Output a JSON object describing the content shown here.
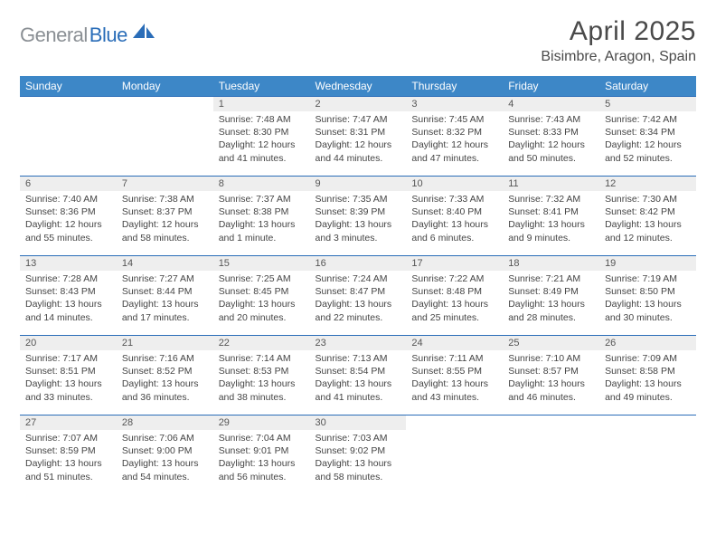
{
  "logo": {
    "gray": "General",
    "blue": "Blue"
  },
  "title": "April 2025",
  "location": "Bisimbre, Aragon, Spain",
  "colors": {
    "header_bg": "#3d87c7",
    "header_text": "#ffffff",
    "daynum_bg": "#eeeeee",
    "rule": "#2a6db8",
    "body_text": "#444444",
    "title_text": "#4a4a4a",
    "logo_gray": "#8a8f94",
    "logo_blue": "#2a6db8"
  },
  "typography": {
    "title_fontsize": 30,
    "location_fontsize": 16,
    "weekday_fontsize": 12,
    "daynum_fontsize": 11,
    "body_fontsize": 10.5
  },
  "weekdays": [
    "Sunday",
    "Monday",
    "Tuesday",
    "Wednesday",
    "Thursday",
    "Friday",
    "Saturday"
  ],
  "weeks": [
    [
      null,
      null,
      {
        "n": "1",
        "sr": "Sunrise: 7:48 AM",
        "ss": "Sunset: 8:30 PM",
        "dl": "Daylight: 12 hours and 41 minutes."
      },
      {
        "n": "2",
        "sr": "Sunrise: 7:47 AM",
        "ss": "Sunset: 8:31 PM",
        "dl": "Daylight: 12 hours and 44 minutes."
      },
      {
        "n": "3",
        "sr": "Sunrise: 7:45 AM",
        "ss": "Sunset: 8:32 PM",
        "dl": "Daylight: 12 hours and 47 minutes."
      },
      {
        "n": "4",
        "sr": "Sunrise: 7:43 AM",
        "ss": "Sunset: 8:33 PM",
        "dl": "Daylight: 12 hours and 50 minutes."
      },
      {
        "n": "5",
        "sr": "Sunrise: 7:42 AM",
        "ss": "Sunset: 8:34 PM",
        "dl": "Daylight: 12 hours and 52 minutes."
      }
    ],
    [
      {
        "n": "6",
        "sr": "Sunrise: 7:40 AM",
        "ss": "Sunset: 8:36 PM",
        "dl": "Daylight: 12 hours and 55 minutes."
      },
      {
        "n": "7",
        "sr": "Sunrise: 7:38 AM",
        "ss": "Sunset: 8:37 PM",
        "dl": "Daylight: 12 hours and 58 minutes."
      },
      {
        "n": "8",
        "sr": "Sunrise: 7:37 AM",
        "ss": "Sunset: 8:38 PM",
        "dl": "Daylight: 13 hours and 1 minute."
      },
      {
        "n": "9",
        "sr": "Sunrise: 7:35 AM",
        "ss": "Sunset: 8:39 PM",
        "dl": "Daylight: 13 hours and 3 minutes."
      },
      {
        "n": "10",
        "sr": "Sunrise: 7:33 AM",
        "ss": "Sunset: 8:40 PM",
        "dl": "Daylight: 13 hours and 6 minutes."
      },
      {
        "n": "11",
        "sr": "Sunrise: 7:32 AM",
        "ss": "Sunset: 8:41 PM",
        "dl": "Daylight: 13 hours and 9 minutes."
      },
      {
        "n": "12",
        "sr": "Sunrise: 7:30 AM",
        "ss": "Sunset: 8:42 PM",
        "dl": "Daylight: 13 hours and 12 minutes."
      }
    ],
    [
      {
        "n": "13",
        "sr": "Sunrise: 7:28 AM",
        "ss": "Sunset: 8:43 PM",
        "dl": "Daylight: 13 hours and 14 minutes."
      },
      {
        "n": "14",
        "sr": "Sunrise: 7:27 AM",
        "ss": "Sunset: 8:44 PM",
        "dl": "Daylight: 13 hours and 17 minutes."
      },
      {
        "n": "15",
        "sr": "Sunrise: 7:25 AM",
        "ss": "Sunset: 8:45 PM",
        "dl": "Daylight: 13 hours and 20 minutes."
      },
      {
        "n": "16",
        "sr": "Sunrise: 7:24 AM",
        "ss": "Sunset: 8:47 PM",
        "dl": "Daylight: 13 hours and 22 minutes."
      },
      {
        "n": "17",
        "sr": "Sunrise: 7:22 AM",
        "ss": "Sunset: 8:48 PM",
        "dl": "Daylight: 13 hours and 25 minutes."
      },
      {
        "n": "18",
        "sr": "Sunrise: 7:21 AM",
        "ss": "Sunset: 8:49 PM",
        "dl": "Daylight: 13 hours and 28 minutes."
      },
      {
        "n": "19",
        "sr": "Sunrise: 7:19 AM",
        "ss": "Sunset: 8:50 PM",
        "dl": "Daylight: 13 hours and 30 minutes."
      }
    ],
    [
      {
        "n": "20",
        "sr": "Sunrise: 7:17 AM",
        "ss": "Sunset: 8:51 PM",
        "dl": "Daylight: 13 hours and 33 minutes."
      },
      {
        "n": "21",
        "sr": "Sunrise: 7:16 AM",
        "ss": "Sunset: 8:52 PM",
        "dl": "Daylight: 13 hours and 36 minutes."
      },
      {
        "n": "22",
        "sr": "Sunrise: 7:14 AM",
        "ss": "Sunset: 8:53 PM",
        "dl": "Daylight: 13 hours and 38 minutes."
      },
      {
        "n": "23",
        "sr": "Sunrise: 7:13 AM",
        "ss": "Sunset: 8:54 PM",
        "dl": "Daylight: 13 hours and 41 minutes."
      },
      {
        "n": "24",
        "sr": "Sunrise: 7:11 AM",
        "ss": "Sunset: 8:55 PM",
        "dl": "Daylight: 13 hours and 43 minutes."
      },
      {
        "n": "25",
        "sr": "Sunrise: 7:10 AM",
        "ss": "Sunset: 8:57 PM",
        "dl": "Daylight: 13 hours and 46 minutes."
      },
      {
        "n": "26",
        "sr": "Sunrise: 7:09 AM",
        "ss": "Sunset: 8:58 PM",
        "dl": "Daylight: 13 hours and 49 minutes."
      }
    ],
    [
      {
        "n": "27",
        "sr": "Sunrise: 7:07 AM",
        "ss": "Sunset: 8:59 PM",
        "dl": "Daylight: 13 hours and 51 minutes."
      },
      {
        "n": "28",
        "sr": "Sunrise: 7:06 AM",
        "ss": "Sunset: 9:00 PM",
        "dl": "Daylight: 13 hours and 54 minutes."
      },
      {
        "n": "29",
        "sr": "Sunrise: 7:04 AM",
        "ss": "Sunset: 9:01 PM",
        "dl": "Daylight: 13 hours and 56 minutes."
      },
      {
        "n": "30",
        "sr": "Sunrise: 7:03 AM",
        "ss": "Sunset: 9:02 PM",
        "dl": "Daylight: 13 hours and 58 minutes."
      },
      null,
      null,
      null
    ]
  ]
}
